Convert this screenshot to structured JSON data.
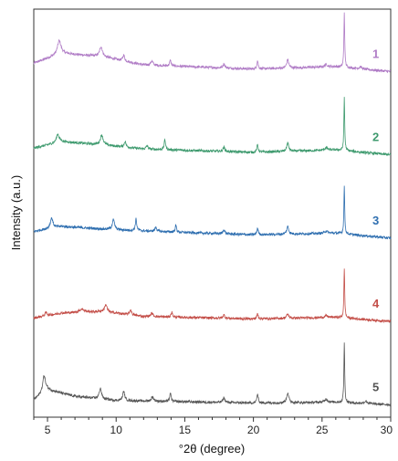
{
  "chart_data": {
    "type": "line",
    "title": "",
    "xlabel": "°2θ (degree)",
    "ylabel": "Intensity (a.u.)",
    "xlim": [
      4,
      30
    ],
    "x_ticks": [
      "5",
      "10",
      "15",
      "20",
      "25",
      "30"
    ],
    "x_tick_values": [
      5,
      10,
      15,
      20,
      25,
      30
    ],
    "y_ticks_shown": false,
    "grid": false,
    "legend": "right-inline",
    "baseline_noise": 0.015,
    "series": [
      {
        "name": "1",
        "color": "#b07cc6",
        "offset": 4.0,
        "baseline": [
          [
            4.0,
            0.1
          ],
          [
            6.0,
            0.22
          ],
          [
            9.0,
            0.18
          ],
          [
            12.0,
            0.08
          ],
          [
            20.0,
            0.03
          ],
          [
            26.0,
            0.06
          ],
          [
            30.0,
            0.0
          ]
        ],
        "peaks": [
          [
            5.85,
            0.16,
            0.15
          ],
          [
            8.9,
            0.12,
            0.12
          ],
          [
            10.55,
            0.07,
            0.08
          ],
          [
            12.6,
            0.05,
            0.1
          ],
          [
            13.95,
            0.07,
            0.06
          ],
          [
            17.85,
            0.05,
            0.08
          ],
          [
            20.3,
            0.1,
            0.06
          ],
          [
            22.5,
            0.1,
            0.09
          ],
          [
            25.3,
            0.03,
            0.12
          ],
          [
            26.62,
            0.66,
            0.035
          ],
          [
            27.8,
            0.025,
            0.1
          ]
        ]
      },
      {
        "name": "2",
        "color": "#3e9a6e",
        "offset": 3.0,
        "baseline": [
          [
            4.0,
            0.08
          ],
          [
            6.0,
            0.16
          ],
          [
            9.0,
            0.12
          ],
          [
            12.0,
            0.07
          ],
          [
            20.0,
            0.03
          ],
          [
            26.0,
            0.06
          ],
          [
            30.0,
            0.0
          ]
        ],
        "peaks": [
          [
            5.75,
            0.1,
            0.12
          ],
          [
            8.95,
            0.12,
            0.12
          ],
          [
            10.65,
            0.07,
            0.08
          ],
          [
            12.25,
            0.04,
            0.08
          ],
          [
            13.55,
            0.12,
            0.06
          ],
          [
            17.85,
            0.05,
            0.08
          ],
          [
            20.3,
            0.09,
            0.06
          ],
          [
            22.5,
            0.1,
            0.09
          ],
          [
            25.3,
            0.03,
            0.12
          ],
          [
            26.62,
            0.64,
            0.035
          ]
        ]
      },
      {
        "name": "3",
        "color": "#2f6fb0",
        "offset": 2.0,
        "baseline": [
          [
            4.0,
            0.08
          ],
          [
            6.0,
            0.14
          ],
          [
            10.0,
            0.1
          ],
          [
            13.0,
            0.08
          ],
          [
            20.0,
            0.04
          ],
          [
            26.0,
            0.06
          ],
          [
            30.0,
            0.0
          ]
        ],
        "peaks": [
          [
            5.3,
            0.12,
            0.12
          ],
          [
            9.8,
            0.12,
            0.1
          ],
          [
            11.45,
            0.14,
            0.06
          ],
          [
            12.9,
            0.05,
            0.08
          ],
          [
            14.35,
            0.08,
            0.06
          ],
          [
            17.85,
            0.05,
            0.08
          ],
          [
            20.3,
            0.08,
            0.06
          ],
          [
            22.5,
            0.09,
            0.09
          ],
          [
            25.3,
            0.03,
            0.12
          ],
          [
            26.62,
            0.58,
            0.035
          ]
        ]
      },
      {
        "name": "4",
        "color": "#c4504a",
        "offset": 1.0,
        "baseline": [
          [
            4.0,
            0.04
          ],
          [
            6.0,
            0.1
          ],
          [
            9.0,
            0.12
          ],
          [
            12.0,
            0.06
          ],
          [
            20.0,
            0.03
          ],
          [
            26.0,
            0.05
          ],
          [
            30.0,
            0.0
          ]
        ],
        "peaks": [
          [
            4.9,
            0.04,
            0.1
          ],
          [
            7.5,
            0.04,
            0.2
          ],
          [
            9.25,
            0.09,
            0.1
          ],
          [
            11.05,
            0.06,
            0.08
          ],
          [
            12.6,
            0.04,
            0.1
          ],
          [
            14.05,
            0.06,
            0.06
          ],
          [
            17.85,
            0.04,
            0.08
          ],
          [
            20.3,
            0.06,
            0.06
          ],
          [
            22.5,
            0.05,
            0.09
          ],
          [
            25.3,
            0.02,
            0.12
          ],
          [
            26.62,
            0.6,
            0.035
          ]
        ]
      },
      {
        "name": "5",
        "color": "#555555",
        "offset": 0.0,
        "baseline": [
          [
            4.0,
            0.06
          ],
          [
            5.0,
            0.18
          ],
          [
            7.0,
            0.1
          ],
          [
            10.0,
            0.05
          ],
          [
            20.0,
            0.02
          ],
          [
            26.0,
            0.03
          ],
          [
            30.0,
            0.0
          ]
        ],
        "peaks": [
          [
            4.75,
            0.2,
            0.12
          ],
          [
            8.85,
            0.13,
            0.1
          ],
          [
            10.55,
            0.11,
            0.09
          ],
          [
            12.65,
            0.05,
            0.1
          ],
          [
            13.95,
            0.1,
            0.06
          ],
          [
            17.85,
            0.06,
            0.08
          ],
          [
            20.3,
            0.11,
            0.06
          ],
          [
            22.5,
            0.12,
            0.09
          ],
          [
            25.3,
            0.04,
            0.12
          ],
          [
            26.62,
            0.72,
            0.035
          ],
          [
            28.2,
            0.03,
            0.12
          ]
        ]
      }
    ]
  }
}
